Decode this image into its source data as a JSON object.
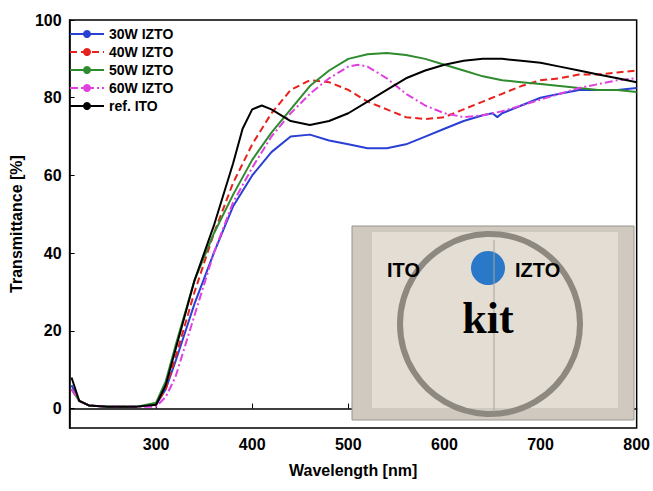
{
  "chart_data": {
    "type": "line",
    "x_label": "Wavelength [nm]",
    "y_label": "Transmittance [%]",
    "xlim": [
      210,
      800
    ],
    "xticks": [
      300,
      400,
      500,
      600,
      700,
      800
    ],
    "ylim": [
      -5,
      100
    ],
    "yticks": [
      0,
      20,
      40,
      60,
      80,
      100
    ],
    "grid": false,
    "legend": "upper left",
    "annotations": [
      "ITO",
      "IZTO",
      "kit"
    ],
    "series": [
      {
        "name": "30W IZTO",
        "color": "#2a3fd4",
        "line_style": "solid",
        "x": [
          212,
          220,
          230,
          250,
          280,
          300,
          310,
          320,
          340,
          360,
          380,
          400,
          420,
          440,
          460,
          480,
          500,
          520,
          540,
          560,
          580,
          600,
          620,
          640,
          650,
          655,
          660,
          680,
          700,
          720,
          740,
          760,
          780,
          800
        ],
        "values": [
          6,
          2,
          0.8,
          0.5,
          0.5,
          1,
          5,
          12,
          27,
          40,
          52,
          60,
          66,
          70,
          70.5,
          69,
          68,
          67,
          67,
          68,
          70,
          72,
          74,
          75.5,
          76,
          75,
          76,
          78,
          80,
          81,
          82,
          82,
          82,
          82.5
        ]
      },
      {
        "name": "40W IZTO",
        "color": "#e8211c",
        "line_style": "dashed",
        "x": [
          212,
          220,
          230,
          250,
          280,
          300,
          310,
          320,
          340,
          360,
          380,
          400,
          420,
          440,
          460,
          480,
          500,
          520,
          540,
          560,
          580,
          600,
          620,
          640,
          660,
          680,
          700,
          720,
          740,
          760,
          780,
          800
        ],
        "values": [
          5,
          2,
          0.8,
          0.5,
          0.5,
          1,
          5,
          13,
          30,
          45,
          58,
          68,
          76,
          82,
          84.5,
          84,
          82,
          79,
          77,
          75,
          74.5,
          75,
          77,
          79,
          81,
          83,
          84.5,
          85,
          86,
          86,
          86.5,
          87
        ]
      },
      {
        "name": "50W IZTO",
        "color": "#2e8b2e",
        "line_style": "solid",
        "x": [
          212,
          220,
          230,
          250,
          280,
          300,
          310,
          320,
          340,
          360,
          380,
          400,
          420,
          440,
          460,
          480,
          500,
          520,
          540,
          560,
          580,
          600,
          620,
          640,
          660,
          680,
          700,
          720,
          740,
          760,
          780,
          800
        ],
        "values": [
          5,
          2,
          0.8,
          0.5,
          0.5,
          1.5,
          7,
          16,
          33,
          45,
          55,
          64,
          71,
          77,
          83,
          87,
          90,
          91.2,
          91.5,
          91,
          90,
          88.5,
          87,
          85.5,
          84.5,
          84,
          83.5,
          83,
          82.5,
          82,
          82,
          81.5
        ]
      },
      {
        "name": "60W IZTO",
        "color": "#e040e0",
        "line_style": "dashdot",
        "x": [
          212,
          220,
          230,
          250,
          280,
          300,
          310,
          320,
          340,
          360,
          380,
          400,
          420,
          440,
          460,
          480,
          500,
          510,
          520,
          540,
          560,
          580,
          600,
          620,
          640,
          660,
          680,
          700,
          720,
          740,
          760,
          780,
          800
        ],
        "values": [
          5,
          2,
          0.8,
          0.5,
          0.5,
          0.5,
          3,
          8,
          24,
          40,
          53,
          62,
          70,
          76,
          81,
          85,
          88,
          88.5,
          88,
          85,
          81,
          78,
          76,
          75,
          75.5,
          76.5,
          78,
          79.5,
          81,
          82.5,
          83.5,
          84.5,
          85
        ]
      },
      {
        "name": "ref. ITO",
        "color": "#000000",
        "line_style": "solid",
        "x": [
          212,
          220,
          230,
          250,
          280,
          300,
          310,
          320,
          340,
          360,
          380,
          390,
          400,
          410,
          420,
          440,
          460,
          480,
          500,
          520,
          540,
          560,
          580,
          600,
          620,
          640,
          660,
          680,
          700,
          720,
          740,
          760,
          780,
          800
        ],
        "values": [
          8,
          2,
          0.8,
          0.5,
          0.5,
          1,
          6,
          15,
          33,
          47,
          63,
          72,
          77,
          78,
          77,
          74,
          73,
          74,
          76,
          79,
          82,
          85,
          87,
          88.5,
          89.5,
          90,
          90,
          89.5,
          89,
          88,
          87,
          86,
          85,
          84
        ]
      }
    ]
  }
}
